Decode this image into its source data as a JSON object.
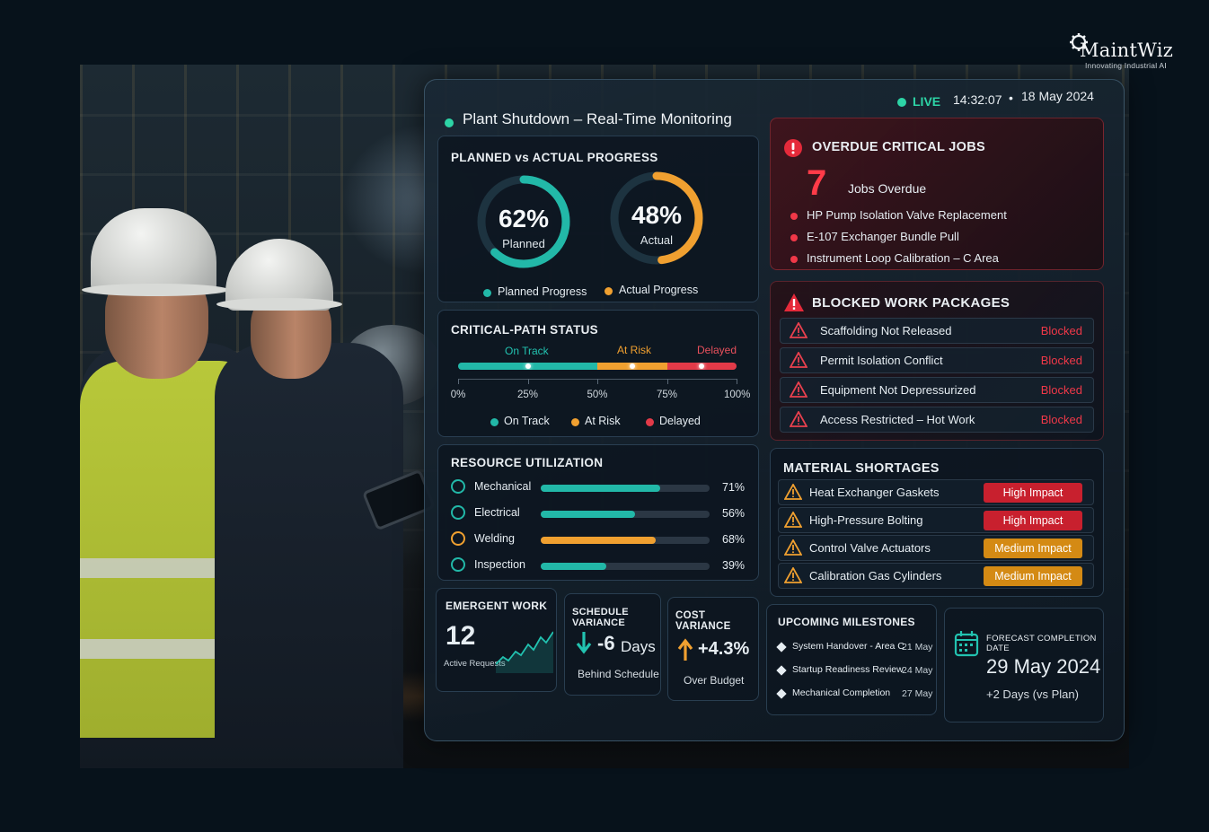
{
  "brand": {
    "name": "MaintWiz",
    "tagline": "Innovating Industrial AI"
  },
  "header": {
    "title": "Plant Shutdown – Real-Time Monitoring",
    "live": "LIVE",
    "time": "14:32:07",
    "separator": "•",
    "date": "18 May 2024"
  },
  "progress": {
    "title": "PLANNED vs ACTUAL PROGRESS",
    "planned": {
      "value": "62%",
      "label": "Planned",
      "fraction": 0.62,
      "legend": "Planned Progress"
    },
    "actual": {
      "value": "48%",
      "label": "Actual",
      "fraction": 0.48,
      "legend": "Actual Progress"
    }
  },
  "critical_path": {
    "title": "CRITICAL-PATH STATUS",
    "segments": [
      {
        "label": "On Track",
        "from": 0,
        "to": 50,
        "color": "#22b8a8"
      },
      {
        "label": "At Risk",
        "from": 50,
        "to": 75,
        "color": "#f0a030"
      },
      {
        "label": "Delayed",
        "from": 75,
        "to": 100,
        "color": "#e23a48"
      }
    ],
    "ticks": [
      "0%",
      "25%",
      "50%",
      "75%",
      "100%"
    ],
    "legend": [
      "On Track",
      "At Risk",
      "Delayed"
    ]
  },
  "resources": {
    "title": "RESOURCE UTILIZATION",
    "items": [
      {
        "name": "Mechanical",
        "value": "71%",
        "fraction": 0.71,
        "color": "#22b8a8",
        "icon": "gear-icon"
      },
      {
        "name": "Electrical",
        "value": "56%",
        "fraction": 0.56,
        "color": "#22b8a8",
        "icon": "bolt-icon"
      },
      {
        "name": "Welding",
        "value": "68%",
        "fraction": 0.68,
        "color": "#f0a030",
        "icon": "location-pin-icon"
      },
      {
        "name": "Inspection",
        "value": "39%",
        "fraction": 0.39,
        "color": "#22b8a8",
        "icon": "clock-icon"
      }
    ]
  },
  "overdue": {
    "title": "OVERDUE CRITICAL JOBS",
    "count": "7",
    "count_label": "Jobs Overdue",
    "jobs": [
      "HP Pump Isolation Valve Replacement",
      "E-107 Exchanger Bundle Pull",
      "Instrument Loop Calibration – C Area"
    ]
  },
  "blocked": {
    "title": "BLOCKED WORK PACKAGES",
    "items": [
      {
        "name": "Scaffolding Not Released",
        "status": "Blocked"
      },
      {
        "name": "Permit Isolation Conflict",
        "status": "Blocked"
      },
      {
        "name": "Equipment Not Depressurized",
        "status": "Blocked"
      },
      {
        "name": "Access Restricted – Hot Work",
        "status": "Blocked"
      }
    ]
  },
  "materials": {
    "title": "MATERIAL SHORTAGES",
    "items": [
      {
        "name": "Heat Exchanger Gaskets",
        "impact": "High Impact",
        "color": "#c8202e"
      },
      {
        "name": "High-Pressure Bolting",
        "impact": "High Impact",
        "color": "#c8202e"
      },
      {
        "name": "Control Valve Actuators",
        "impact": "Medium Impact",
        "color": "#d48a14"
      },
      {
        "name": "Calibration Gas Cylinders",
        "impact": "Medium Impact",
        "color": "#d48a14"
      }
    ]
  },
  "emergent": {
    "title": "EMERGENT WORK",
    "value": "12",
    "label": "Active Requests"
  },
  "schedule": {
    "title": "SCHEDULE VARIANCE",
    "value": "-6",
    "unit": "Days",
    "label": "Behind Schedule"
  },
  "cost": {
    "title": "COST VARIANCE",
    "value": "+4.3%",
    "label": "Over Budget"
  },
  "milestones": {
    "title": "UPCOMING MILESTONES",
    "items": [
      {
        "name": "System Handover - Area C",
        "date": "21 May"
      },
      {
        "name": "Startup Readiness Review",
        "date": "24 May"
      },
      {
        "name": "Mechanical Completion",
        "date": "27 May"
      }
    ]
  },
  "forecast": {
    "title": "FORECAST COMPLETION DATE",
    "date": "29 May 2024",
    "delta": "+2 Days (vs Plan)"
  }
}
